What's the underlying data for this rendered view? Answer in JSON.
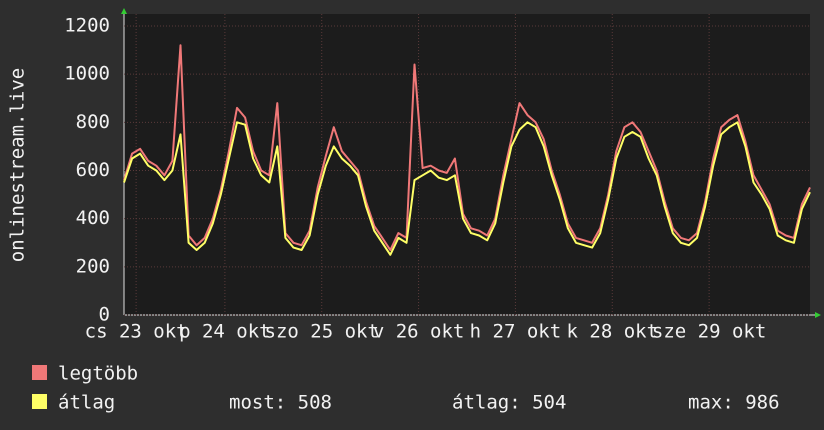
{
  "chart_data": {
    "type": "line",
    "y_label": "onlinestream.live",
    "x": [
      0,
      2,
      4,
      6,
      8,
      10,
      12,
      14,
      16,
      18,
      20,
      22,
      24,
      26,
      28,
      30,
      32,
      34,
      36,
      38,
      40,
      42,
      44,
      46,
      48,
      50,
      52,
      54,
      56,
      58,
      60,
      62,
      64,
      66,
      68,
      70,
      72,
      74,
      76,
      78,
      80,
      82,
      84,
      86,
      88,
      90,
      92,
      94,
      96,
      98,
      100,
      102,
      104,
      106,
      108,
      110,
      112,
      114,
      116,
      118,
      120,
      122,
      124,
      126,
      128,
      130,
      132,
      134,
      136,
      138,
      140,
      142,
      144,
      146,
      148,
      150,
      152,
      154,
      156,
      158,
      160,
      162,
      164,
      166,
      168,
      170
    ],
    "xlim": [
      0,
      170
    ],
    "xticks": [
      {
        "value": 3,
        "label": "cs 23 okt"
      },
      {
        "value": 25,
        "label": "p 24 okt"
      },
      {
        "value": 49,
        "label": "szo 25 okt"
      },
      {
        "value": 73,
        "label": "v 26 okt"
      },
      {
        "value": 97,
        "label": "h 27 okt"
      },
      {
        "value": 121,
        "label": "k 28 okt"
      },
      {
        "value": 145,
        "label": "sze 29 okt"
      }
    ],
    "ylim": [
      0,
      1200
    ],
    "yticks": [
      0,
      200,
      400,
      600,
      800,
      1000,
      1200
    ],
    "grid": true,
    "series": [
      {
        "name": "legtöbb",
        "color": "#f07878",
        "values": [
          560,
          670,
          690,
          640,
          620,
          580,
          640,
          1120,
          330,
          290,
          320,
          400,
          520,
          680,
          860,
          820,
          680,
          600,
          580,
          880,
          340,
          300,
          290,
          350,
          530,
          660,
          780,
          680,
          640,
          600,
          470,
          370,
          320,
          270,
          340,
          320,
          1040,
          610,
          620,
          600,
          590,
          650,
          420,
          360,
          350,
          330,
          400,
          580,
          730,
          880,
          830,
          800,
          730,
          600,
          500,
          380,
          320,
          310,
          300,
          360,
          500,
          680,
          780,
          800,
          760,
          680,
          600,
          470,
          360,
          320,
          310,
          340,
          470,
          650,
          780,
          810,
          830,
          720,
          580,
          520,
          460,
          350,
          330,
          320,
          460,
          530
        ]
      },
      {
        "name": "átlag",
        "color": "#ffff66",
        "values": [
          550,
          650,
          670,
          620,
          600,
          560,
          600,
          750,
          300,
          270,
          300,
          380,
          500,
          650,
          800,
          790,
          650,
          580,
          550,
          700,
          320,
          280,
          270,
          330,
          500,
          620,
          700,
          650,
          620,
          580,
          450,
          350,
          300,
          250,
          320,
          300,
          560,
          580,
          600,
          570,
          560,
          580,
          400,
          340,
          330,
          310,
          380,
          550,
          700,
          770,
          800,
          780,
          700,
          580,
          480,
          360,
          300,
          290,
          280,
          340,
          480,
          650,
          740,
          760,
          740,
          650,
          580,
          450,
          340,
          300,
          290,
          320,
          450,
          620,
          750,
          780,
          800,
          700,
          550,
          500,
          440,
          330,
          310,
          300,
          440,
          510
        ]
      }
    ],
    "stats": [
      "most: 508",
      "átlag: 504",
      "max: 986"
    ]
  }
}
